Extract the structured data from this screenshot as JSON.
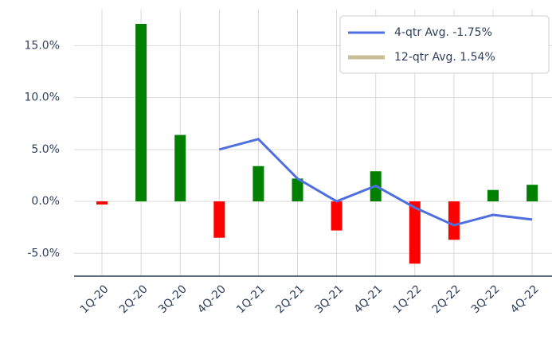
{
  "chart_data": {
    "type": "bar",
    "categories": [
      "1Q-20",
      "2Q-20",
      "3Q-20",
      "4Q-20",
      "1Q-21",
      "2Q-21",
      "3Q-21",
      "4Q-21",
      "1Q-22",
      "2Q-22",
      "3Q-22",
      "4Q-22"
    ],
    "values": [
      -0.3,
      17.1,
      6.4,
      -3.5,
      3.4,
      2.2,
      -2.8,
      2.9,
      -6.0,
      -3.7,
      1.1,
      1.6
    ],
    "positive_color": "#008000",
    "negative_color": "#ff0000",
    "series": [
      {
        "name": "4-qtr Avg. -1.75%",
        "color": "#4f6fe0",
        "values": [
          null,
          null,
          null,
          5.0,
          6.0,
          2.2,
          0.0,
          1.5,
          -0.6,
          -2.3,
          -1.3,
          -1.75
        ]
      },
      {
        "name": "12-qtr Avg. 1.54%",
        "color": "#c8bd94",
        "values": [
          null,
          null,
          null,
          null,
          null,
          null,
          null,
          null,
          null,
          null,
          null,
          null
        ]
      }
    ],
    "ylim": [
      -7.2,
      19.4
    ],
    "yticks": [
      {
        "value": -5,
        "label": "-5.0%"
      },
      {
        "value": 0,
        "label": "0.0%"
      },
      {
        "value": 5,
        "label": "5.0%"
      },
      {
        "value": 10,
        "label": "10.0%"
      },
      {
        "value": 15,
        "label": "15.0%"
      }
    ],
    "grid": true,
    "legend": "upper right"
  }
}
